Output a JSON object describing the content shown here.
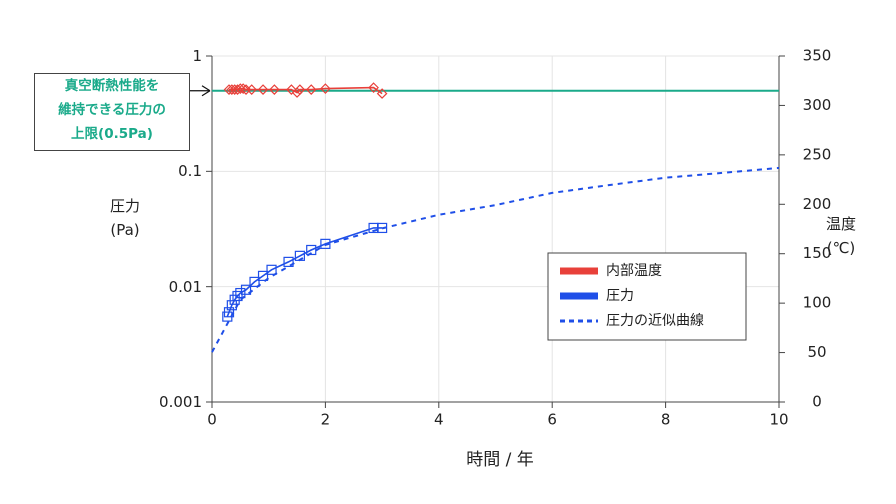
{
  "chart_data": {
    "type": "line",
    "xlabel": "時間 / 年",
    "ylabel": "圧力 (Pa)",
    "y2label": "温度 (℃)",
    "xlim": [
      0,
      10
    ],
    "xticks": [
      0,
      2,
      4,
      6,
      8,
      10
    ],
    "ylim": [
      0.001,
      1
    ],
    "yticks": [
      0.001,
      0.01,
      0.1,
      1
    ],
    "ylog": true,
    "y2lim": [
      0,
      350
    ],
    "y2ticks": [
      0,
      50,
      100,
      150,
      200,
      250,
      300,
      350
    ],
    "grid": true,
    "legend": "lower right",
    "threshold": {
      "value": 0.5,
      "color": "#1aaa8a",
      "lines": [
        "真空断熱性能を",
        "維持できる圧力の",
        "上限(0.5Pa)"
      ]
    },
    "series": [
      {
        "name": "内部温度",
        "color": "#e8403a",
        "axis": "y2",
        "marker": "diamond",
        "style": "solid",
        "x": [
          0.3,
          0.35,
          0.4,
          0.45,
          0.5,
          0.55,
          0.6,
          0.7,
          0.9,
          1.1,
          1.4,
          1.5,
          1.55,
          1.75,
          2.0,
          2.85,
          3.0
        ],
        "values": [
          316,
          316,
          316,
          316,
          317,
          317,
          316,
          316,
          316,
          316,
          316,
          313,
          316,
          316,
          317,
          318,
          312
        ]
      },
      {
        "name": "圧力",
        "color": "#1f4fe8",
        "marker": "square",
        "style": "solid",
        "x": [
          0.27,
          0.3,
          0.35,
          0.4,
          0.45,
          0.5,
          0.6,
          0.75,
          0.9,
          1.05,
          1.35,
          1.55,
          1.75,
          2.0,
          2.85,
          3.0
        ],
        "values": [
          0.0055,
          0.006,
          0.0069,
          0.0077,
          0.0083,
          0.0088,
          0.0094,
          0.011,
          0.0124,
          0.014,
          0.0164,
          0.0185,
          0.0208,
          0.0235,
          0.0323,
          0.0323
        ]
      },
      {
        "name": "圧力の近似曲線",
        "color": "#1f4fe8",
        "marker": "none",
        "style": "dashed",
        "x": [
          0,
          0.5,
          1,
          2,
          3,
          4,
          5,
          6,
          7,
          8,
          9,
          10
        ],
        "values": [
          0.0027,
          0.0077,
          0.0119,
          0.023,
          0.032,
          0.042,
          0.051,
          0.065,
          0.076,
          0.088,
          0.097,
          0.107
        ]
      }
    ]
  }
}
